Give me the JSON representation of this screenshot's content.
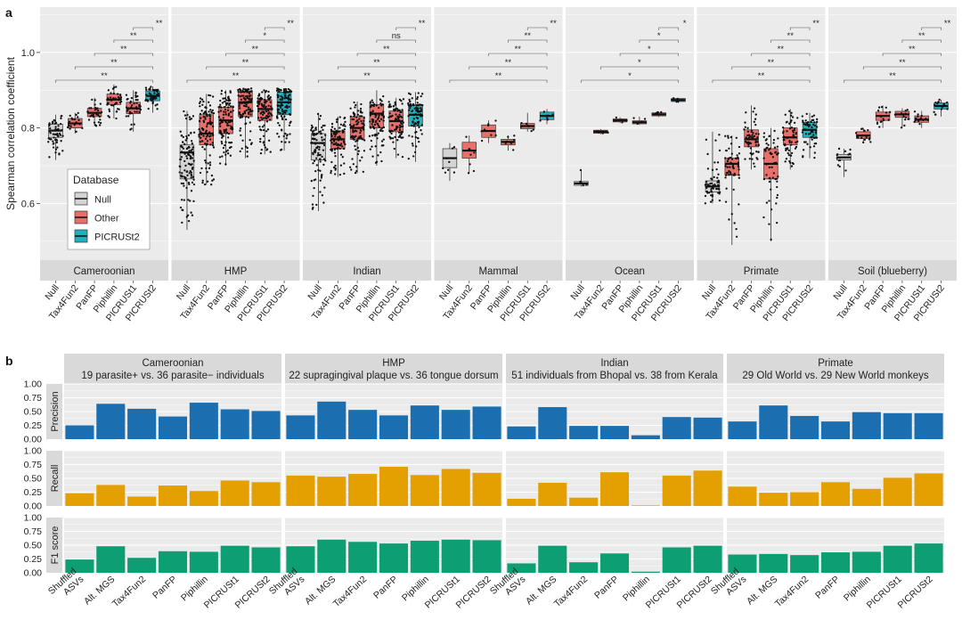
{
  "panel_labels": {
    "a": "a",
    "b": "b"
  },
  "colors": {
    "panel_bg": "#ebebeb",
    "strip_bg": "#d9d9d9",
    "grid": "#ffffff",
    "null_fill": "#d4d4d4",
    "other_fill": "#e8706b",
    "picrust2_fill": "#1fb2be",
    "precision": "#1b6fb0",
    "recall": "#e3a000",
    "f1": "#0d9e74",
    "text": "#222222"
  },
  "chart_data": [
    {
      "type": "boxplot",
      "id": "a",
      "ylabel": "Spearman correlation coefficient",
      "ylim": [
        0.45,
        1.12
      ],
      "yticks": [
        0.6,
        0.8,
        1.0
      ],
      "ytick_labels": [
        "0.6",
        "0.8",
        "1.0"
      ],
      "categories": [
        "Null",
        "Tax4Fun2",
        "PanFP",
        "Piphillin",
        "PICRUSt1",
        "PICRUSt2"
      ],
      "legend": {
        "title": "Database",
        "position": "inside-left",
        "entries": [
          {
            "label": "Null",
            "key": "null"
          },
          {
            "label": "Other",
            "key": "other"
          },
          {
            "label": "PICRUSt2",
            "key": "picrust2"
          }
        ]
      },
      "facets": [
        {
          "name": "Cameroonian",
          "groups": [
            {
              "cat": "Null",
              "q1": 0.775,
              "med": 0.793,
              "q3": 0.81,
              "lo": 0.715,
              "hi": 0.835,
              "n": 55
            },
            {
              "cat": "Tax4Fun2",
              "q1": 0.8,
              "med": 0.812,
              "q3": 0.825,
              "lo": 0.785,
              "hi": 0.84,
              "n": 20
            },
            {
              "cat": "PanFP",
              "q1": 0.83,
              "med": 0.84,
              "q3": 0.852,
              "lo": 0.805,
              "hi": 0.88,
              "n": 30
            },
            {
              "cat": "Piphillin",
              "q1": 0.862,
              "med": 0.875,
              "q3": 0.89,
              "lo": 0.825,
              "hi": 0.915,
              "n": 40
            },
            {
              "cat": "PICRUSt1",
              "q1": 0.838,
              "med": 0.852,
              "q3": 0.868,
              "lo": 0.79,
              "hi": 0.9,
              "n": 40
            },
            {
              "cat": "PICRUSt2",
              "q1": 0.872,
              "med": 0.885,
              "q3": 0.898,
              "lo": 0.84,
              "hi": 0.91,
              "n": 45
            }
          ],
          "sig": [
            "**",
            "**",
            "**",
            "**",
            "**"
          ]
        },
        {
          "name": "HMP",
          "groups": [
            {
              "cat": "Null",
              "q1": 0.665,
              "med": 0.735,
              "q3": 0.755,
              "lo": 0.53,
              "hi": 0.845,
              "n": 110
            },
            {
              "cat": "Tax4Fun2",
              "q1": 0.755,
              "med": 0.785,
              "q3": 0.835,
              "lo": 0.65,
              "hi": 0.89,
              "n": 110
            },
            {
              "cat": "PanFP",
              "q1": 0.785,
              "med": 0.82,
              "q3": 0.855,
              "lo": 0.7,
              "hi": 0.9,
              "n": 110
            },
            {
              "cat": "Piphillin",
              "q1": 0.83,
              "med": 0.868,
              "q3": 0.895,
              "lo": 0.72,
              "hi": 0.905,
              "n": 110
            },
            {
              "cat": "PICRUSt1",
              "q1": 0.82,
              "med": 0.85,
              "q3": 0.875,
              "lo": 0.73,
              "hi": 0.9,
              "n": 110
            },
            {
              "cat": "PICRUSt2",
              "q1": 0.835,
              "med": 0.868,
              "q3": 0.895,
              "lo": 0.74,
              "hi": 0.905,
              "n": 110
            }
          ],
          "sig": [
            "**",
            "**",
            "**",
            "*",
            "**"
          ]
        },
        {
          "name": "Indian",
          "groups": [
            {
              "cat": "Null",
              "q1": 0.715,
              "med": 0.76,
              "q3": 0.785,
              "lo": 0.58,
              "hi": 0.84,
              "n": 90
            },
            {
              "cat": "Tax4Fun2",
              "q1": 0.745,
              "med": 0.77,
              "q3": 0.792,
              "lo": 0.67,
              "hi": 0.83,
              "n": 90
            },
            {
              "cat": "PanFP",
              "q1": 0.77,
              "med": 0.8,
              "q3": 0.83,
              "lo": 0.68,
              "hi": 0.87,
              "n": 90
            },
            {
              "cat": "Piphillin",
              "q1": 0.8,
              "med": 0.838,
              "q3": 0.862,
              "lo": 0.7,
              "hi": 0.9,
              "n": 90
            },
            {
              "cat": "PICRUSt1",
              "q1": 0.79,
              "med": 0.818,
              "q3": 0.845,
              "lo": 0.72,
              "hi": 0.88,
              "n": 90
            },
            {
              "cat": "PICRUSt2",
              "q1": 0.805,
              "med": 0.835,
              "q3": 0.86,
              "lo": 0.71,
              "hi": 0.895,
              "n": 90
            }
          ],
          "sig": [
            "**",
            "**",
            "**",
            "ns",
            "**"
          ]
        },
        {
          "name": "Mammal",
          "groups": [
            {
              "cat": "Null",
              "q1": 0.695,
              "med": 0.72,
              "q3": 0.745,
              "lo": 0.66,
              "hi": 0.76,
              "n": 8
            },
            {
              "cat": "Tax4Fun2",
              "q1": 0.72,
              "med": 0.74,
              "q3": 0.762,
              "lo": 0.68,
              "hi": 0.78,
              "n": 8
            },
            {
              "cat": "PanFP",
              "q1": 0.775,
              "med": 0.792,
              "q3": 0.808,
              "lo": 0.76,
              "hi": 0.82,
              "n": 8
            },
            {
              "cat": "Piphillin",
              "q1": 0.755,
              "med": 0.763,
              "q3": 0.77,
              "lo": 0.74,
              "hi": 0.78,
              "n": 8
            },
            {
              "cat": "PICRUSt1",
              "q1": 0.798,
              "med": 0.805,
              "q3": 0.812,
              "lo": 0.79,
              "hi": 0.84,
              "n": 8
            },
            {
              "cat": "PICRUSt2",
              "q1": 0.822,
              "med": 0.832,
              "q3": 0.842,
              "lo": 0.81,
              "hi": 0.85,
              "n": 8
            }
          ],
          "sig": [
            "**",
            "**",
            "**",
            "**",
            "**"
          ]
        },
        {
          "name": "Ocean",
          "groups": [
            {
              "cat": "Null",
              "q1": 0.648,
              "med": 0.653,
              "q3": 0.658,
              "lo": 0.645,
              "hi": 0.69,
              "n": 5
            },
            {
              "cat": "Tax4Fun2",
              "q1": 0.786,
              "med": 0.79,
              "q3": 0.794,
              "lo": 0.783,
              "hi": 0.797,
              "n": 5
            },
            {
              "cat": "PanFP",
              "q1": 0.816,
              "med": 0.82,
              "q3": 0.824,
              "lo": 0.813,
              "hi": 0.828,
              "n": 5
            },
            {
              "cat": "Piphillin",
              "q1": 0.811,
              "med": 0.815,
              "q3": 0.819,
              "lo": 0.808,
              "hi": 0.83,
              "n": 5
            },
            {
              "cat": "PICRUSt1",
              "q1": 0.832,
              "med": 0.836,
              "q3": 0.84,
              "lo": 0.829,
              "hi": 0.843,
              "n": 5
            },
            {
              "cat": "PICRUSt2",
              "q1": 0.87,
              "med": 0.874,
              "q3": 0.878,
              "lo": 0.866,
              "hi": 0.88,
              "n": 5
            }
          ],
          "sig": [
            "*",
            "*",
            "*",
            "*",
            "*"
          ]
        },
        {
          "name": "Primate",
          "groups": [
            {
              "cat": "Null",
              "q1": 0.63,
              "med": 0.645,
              "q3": 0.66,
              "lo": 0.6,
              "hi": 0.79,
              "n": 60
            },
            {
              "cat": "Tax4Fun2",
              "q1": 0.675,
              "med": 0.705,
              "q3": 0.72,
              "lo": 0.49,
              "hi": 0.78,
              "n": 60
            },
            {
              "cat": "PanFP",
              "q1": 0.75,
              "med": 0.77,
              "q3": 0.795,
              "lo": 0.69,
              "hi": 0.86,
              "n": 60
            },
            {
              "cat": "Piphillin",
              "q1": 0.665,
              "med": 0.705,
              "q3": 0.745,
              "lo": 0.5,
              "hi": 0.8,
              "n": 60
            },
            {
              "cat": "PICRUSt1",
              "q1": 0.755,
              "med": 0.775,
              "q3": 0.8,
              "lo": 0.69,
              "hi": 0.85,
              "n": 60
            },
            {
              "cat": "PICRUSt2",
              "q1": 0.775,
              "med": 0.795,
              "q3": 0.815,
              "lo": 0.72,
              "hi": 0.84,
              "n": 60
            }
          ],
          "sig": [
            "**",
            "**",
            "**",
            "**",
            "**"
          ]
        },
        {
          "name": "Soil (blueberry)",
          "groups": [
            {
              "cat": "Null",
              "q1": 0.715,
              "med": 0.722,
              "q3": 0.73,
              "lo": 0.67,
              "hi": 0.745,
              "n": 15
            },
            {
              "cat": "Tax4Fun2",
              "q1": 0.772,
              "med": 0.78,
              "q3": 0.79,
              "lo": 0.76,
              "hi": 0.8,
              "n": 15
            },
            {
              "cat": "PanFP",
              "q1": 0.82,
              "med": 0.832,
              "q3": 0.842,
              "lo": 0.8,
              "hi": 0.86,
              "n": 15
            },
            {
              "cat": "Piphillin",
              "q1": 0.828,
              "med": 0.836,
              "q3": 0.844,
              "lo": 0.8,
              "hi": 0.852,
              "n": 15
            },
            {
              "cat": "PICRUSt1",
              "q1": 0.815,
              "med": 0.822,
              "q3": 0.832,
              "lo": 0.8,
              "hi": 0.845,
              "n": 15
            },
            {
              "cat": "PICRUSt2",
              "q1": 0.85,
              "med": 0.858,
              "q3": 0.866,
              "lo": 0.83,
              "hi": 0.875,
              "n": 15
            }
          ],
          "sig": [
            "**",
            "**",
            "**",
            "**",
            "**"
          ]
        }
      ]
    },
    {
      "type": "bar",
      "id": "b",
      "categories": [
        "Shuffled ASVs",
        "Alt. MGS",
        "Tax4Fun2",
        "PanFP",
        "Piphillin",
        "PICRUSt1",
        "PICRUSt2"
      ],
      "category_lines": [
        [
          "Shuffled",
          "ASVs"
        ],
        [
          "Alt. MGS"
        ],
        [
          "Tax4Fun2"
        ],
        [
          "PanFP"
        ],
        [
          "Piphillin"
        ],
        [
          "PICRUSt1"
        ],
        [
          "PICRUSt2"
        ]
      ],
      "ylim": [
        0,
        1
      ],
      "yticks": [
        "0.00",
        "0.25",
        "0.50",
        "0.75",
        "1.00"
      ],
      "rows": [
        {
          "metric": "Precision",
          "color_key": "precision"
        },
        {
          "metric": "Recall",
          "color_key": "recall"
        },
        {
          "metric": "F1 score",
          "color_key": "f1"
        }
      ],
      "facets": [
        {
          "name": "Cameroonian",
          "subtitle": "19 parasite+ vs. 36 parasite− individuals",
          "values": {
            "Precision": [
              0.25,
              0.64,
              0.55,
              0.41,
              0.66,
              0.54,
              0.51
            ],
            "Recall": [
              0.23,
              0.38,
              0.17,
              0.37,
              0.27,
              0.46,
              0.43
            ],
            "F1 score": [
              0.24,
              0.48,
              0.27,
              0.39,
              0.38,
              0.49,
              0.46
            ]
          }
        },
        {
          "name": "HMP",
          "subtitle": "22 supragingival plaque vs. 36 tongue dorsum",
          "values": {
            "Precision": [
              0.43,
              0.68,
              0.53,
              0.43,
              0.61,
              0.53,
              0.59
            ],
            "Recall": [
              0.55,
              0.53,
              0.58,
              0.71,
              0.56,
              0.67,
              0.6
            ],
            "F1 score": [
              0.48,
              0.6,
              0.56,
              0.53,
              0.58,
              0.6,
              0.59
            ]
          }
        },
        {
          "name": "Indian",
          "subtitle": "51 individuals from Bhopal vs. 38 from Kerala",
          "values": {
            "Precision": [
              0.23,
              0.58,
              0.24,
              0.24,
              0.07,
              0.4,
              0.39
            ],
            "Recall": [
              0.13,
              0.42,
              0.15,
              0.61,
              0.01,
              0.55,
              0.64
            ],
            "F1 score": [
              0.17,
              0.49,
              0.19,
              0.35,
              0.02,
              0.46,
              0.49
            ]
          }
        },
        {
          "name": "Primate",
          "subtitle": "29 Old World vs. 29 New World monkeys",
          "values": {
            "Precision": [
              0.32,
              0.61,
              0.42,
              0.32,
              0.49,
              0.47,
              0.47
            ],
            "Recall": [
              0.35,
              0.24,
              0.25,
              0.43,
              0.31,
              0.51,
              0.59
            ],
            "F1 score": [
              0.33,
              0.34,
              0.32,
              0.37,
              0.38,
              0.49,
              0.53
            ]
          }
        }
      ]
    }
  ]
}
